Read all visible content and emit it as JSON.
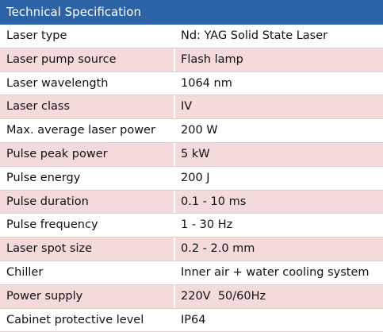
{
  "header": {
    "title": "Technical Specification"
  },
  "table": {
    "rows": [
      [
        "Laser type",
        "Nd: YAG Solid State Laser"
      ],
      [
        "Laser pump source",
        "Flash lamp"
      ],
      [
        "Laser wavelength",
        "1064 nm"
      ],
      [
        "Laser class",
        "IV"
      ],
      [
        "Max. average laser power",
        "200 W"
      ],
      [
        "Pulse peak power",
        "5 kW"
      ],
      [
        "Pulse energy",
        "200 J"
      ],
      [
        "Pulse duration",
        "0.1 - 10 ms"
      ],
      [
        "Pulse frequency",
        "1 - 30 Hz"
      ],
      [
        "Laser spot size",
        "0.2 - 2.0 mm"
      ],
      [
        "Chiller",
        "Inner air + water cooling system"
      ],
      [
        "Power supply",
        "220V  50/60Hz"
      ],
      [
        "Cabinet protective level",
        "IP64"
      ]
    ]
  }
}
